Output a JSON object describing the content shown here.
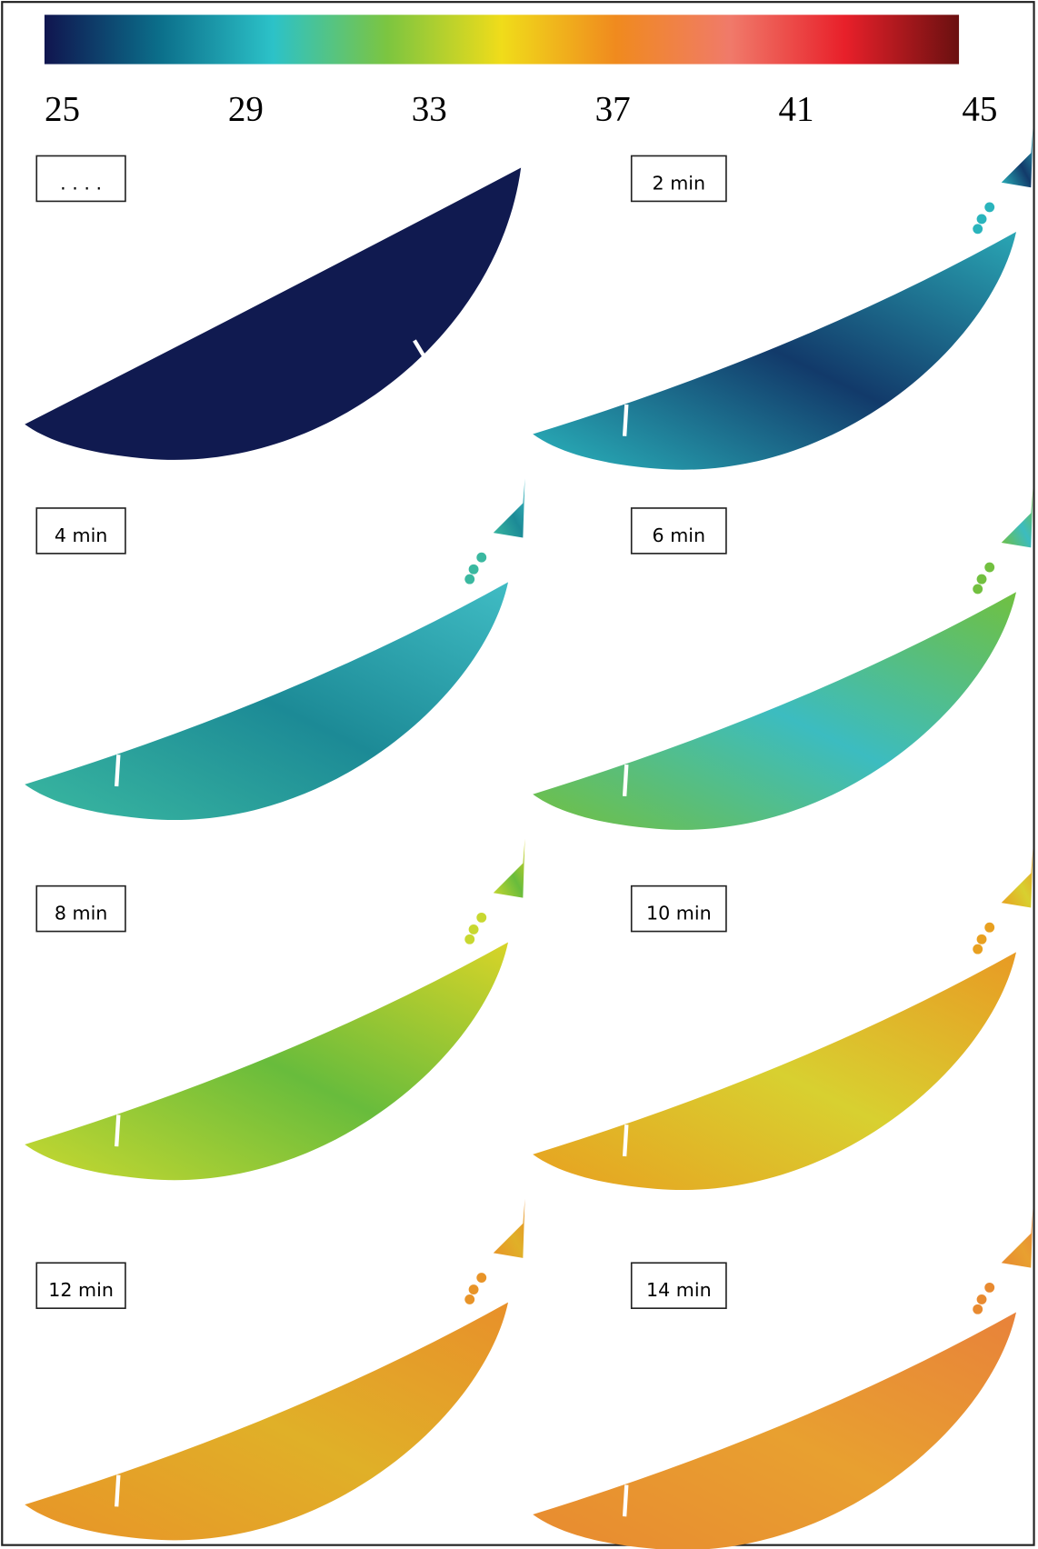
{
  "colorbar": {
    "colors": [
      "#10154f",
      "#0b6e8a",
      "#2cc2c8",
      "#7cc540",
      "#f0dc1a",
      "#f08a1e",
      "#f07a6a",
      "#e8202a",
      "#6a1010"
    ],
    "range": [
      25,
      45
    ],
    "ticks": [
      25,
      29,
      33,
      37,
      41,
      45
    ]
  },
  "panels": [
    {
      "label": ". . . .",
      "colors": [
        "#101a50",
        "#101a50",
        "#101a50"
      ]
    },
    {
      "label": "2 min",
      "colors": [
        "#2ab4bc",
        "#123a6a",
        "#2aa6b4"
      ]
    },
    {
      "label": "4 min",
      "colors": [
        "#3ab8a0",
        "#1c8a96",
        "#40bcc4"
      ]
    },
    {
      "label": "6 min",
      "colors": [
        "#72c040",
        "#3cbcc0",
        "#70c040"
      ]
    },
    {
      "label": "8 min",
      "colors": [
        "#c8d830",
        "#68bc3c",
        "#d8d428"
      ]
    },
    {
      "label": "10 min",
      "colors": [
        "#e8a020",
        "#d8d030",
        "#e89a24"
      ]
    },
    {
      "label": "12 min",
      "colors": [
        "#e89428",
        "#e0b028",
        "#e8902a"
      ]
    },
    {
      "label": "14 min",
      "colors": [
        "#e88a30",
        "#e8a030",
        "#e8823a"
      ]
    }
  ]
}
